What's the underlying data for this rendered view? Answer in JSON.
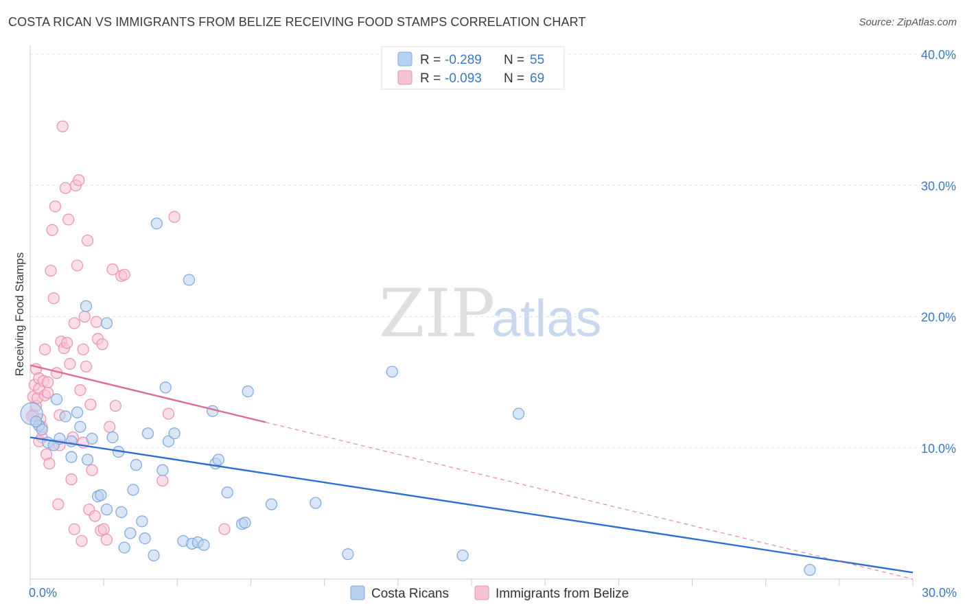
{
  "title": "COSTA RICAN VS IMMIGRANTS FROM BELIZE RECEIVING FOOD STAMPS CORRELATION CHART",
  "source": "Source: ZipAtlas.com",
  "watermark": {
    "zip": "ZIP",
    "atlas": "atlas"
  },
  "colors": {
    "blue": "#7ba7e0",
    "blue_fill": "#b9d1f1",
    "blue_line": "#2e6fd0",
    "pink": "#ee8fb0",
    "pink_fill": "#f7c2d4",
    "pink_line": "#e06a92",
    "grid": "#e3e3e3",
    "tick": "#3b76c4"
  },
  "chart_data": {
    "type": "scatter",
    "title": "COSTA RICAN VS IMMIGRANTS FROM BELIZE RECEIVING FOOD STAMPS CORRELATION CHART",
    "xlabel": "",
    "ylabel": "Receiving Food Stamps",
    "xlim": [
      0,
      30
    ],
    "ylim": [
      0,
      40
    ],
    "x_tick_labels": [
      "0.0%",
      "30.0%"
    ],
    "y_ticks": [
      10,
      20,
      30,
      40
    ],
    "y_tick_labels": [
      "10.0%",
      "20.0%",
      "30.0%",
      "40.0%"
    ],
    "legend": [
      {
        "r_label": "R =",
        "r_value": "-0.289",
        "n_label": "N =",
        "n_value": "55"
      },
      {
        "r_label": "R =",
        "r_value": "-0.093",
        "n_label": "N =",
        "n_value": "69"
      }
    ],
    "series": [
      {
        "name": "Costa Ricans",
        "trend": {
          "x": [
            0,
            30
          ],
          "y": [
            10.8,
            0.5
          ],
          "dashed_from": null
        },
        "points": [
          {
            "x": 0.05,
            "y": 12.6,
            "big": true
          },
          {
            "x": 0.3,
            "y": 11.7
          },
          {
            "x": 0.4,
            "y": 11.4
          },
          {
            "x": 0.6,
            "y": 10.4
          },
          {
            "x": 0.8,
            "y": 10.2
          },
          {
            "x": 0.9,
            "y": 13.7
          },
          {
            "x": 1.0,
            "y": 10.7
          },
          {
            "x": 1.2,
            "y": 12.4
          },
          {
            "x": 1.4,
            "y": 10.5
          },
          {
            "x": 1.4,
            "y": 9.3
          },
          {
            "x": 1.6,
            "y": 12.7
          },
          {
            "x": 1.7,
            "y": 11.6
          },
          {
            "x": 1.9,
            "y": 20.8
          },
          {
            "x": 1.95,
            "y": 9.1
          },
          {
            "x": 2.1,
            "y": 10.7
          },
          {
            "x": 2.3,
            "y": 6.3
          },
          {
            "x": 2.4,
            "y": 6.4
          },
          {
            "x": 2.6,
            "y": 5.3
          },
          {
            "x": 2.6,
            "y": 19.5
          },
          {
            "x": 2.8,
            "y": 10.8
          },
          {
            "x": 3.0,
            "y": 9.7
          },
          {
            "x": 3.1,
            "y": 5.1
          },
          {
            "x": 3.2,
            "y": 2.4
          },
          {
            "x": 3.4,
            "y": 3.5
          },
          {
            "x": 3.5,
            "y": 6.8
          },
          {
            "x": 3.6,
            "y": 8.7
          },
          {
            "x": 3.8,
            "y": 4.4
          },
          {
            "x": 3.9,
            "y": 3.1
          },
          {
            "x": 4.0,
            "y": 11.1
          },
          {
            "x": 4.2,
            "y": 1.8
          },
          {
            "x": 4.3,
            "y": 27.1
          },
          {
            "x": 4.5,
            "y": 8.3
          },
          {
            "x": 4.6,
            "y": 14.6
          },
          {
            "x": 4.7,
            "y": 10.5
          },
          {
            "x": 4.9,
            "y": 11.1
          },
          {
            "x": 5.2,
            "y": 2.9
          },
          {
            "x": 5.4,
            "y": 22.8
          },
          {
            "x": 5.5,
            "y": 2.7
          },
          {
            "x": 5.7,
            "y": 2.8
          },
          {
            "x": 5.9,
            "y": 2.6
          },
          {
            "x": 6.2,
            "y": 12.8
          },
          {
            "x": 6.3,
            "y": 8.8
          },
          {
            "x": 6.4,
            "y": 9.1
          },
          {
            "x": 6.7,
            "y": 6.6
          },
          {
            "x": 7.2,
            "y": 4.2
          },
          {
            "x": 7.3,
            "y": 4.3
          },
          {
            "x": 7.4,
            "y": 14.3
          },
          {
            "x": 8.2,
            "y": 5.7
          },
          {
            "x": 9.7,
            "y": 5.8
          },
          {
            "x": 10.8,
            "y": 1.9
          },
          {
            "x": 12.3,
            "y": 15.8
          },
          {
            "x": 14.7,
            "y": 1.8
          },
          {
            "x": 16.6,
            "y": 12.6
          },
          {
            "x": 26.5,
            "y": 0.7
          },
          {
            "x": 0.2,
            "y": 12.0
          }
        ]
      },
      {
        "name": "Immigrants from Belize",
        "trend": {
          "x": [
            0,
            30
          ],
          "y": [
            16.3,
            0.0
          ],
          "dashed_from": 8.0
        },
        "points": [
          {
            "x": 0.1,
            "y": 12.5
          },
          {
            "x": 0.1,
            "y": 13.9
          },
          {
            "x": 0.15,
            "y": 14.8
          },
          {
            "x": 0.2,
            "y": 16.0
          },
          {
            "x": 0.2,
            "y": 13.2
          },
          {
            "x": 0.25,
            "y": 13.8
          },
          {
            "x": 0.3,
            "y": 15.3
          },
          {
            "x": 0.3,
            "y": 14.5
          },
          {
            "x": 0.35,
            "y": 12.2
          },
          {
            "x": 0.4,
            "y": 11.6
          },
          {
            "x": 0.4,
            "y": 10.8
          },
          {
            "x": 0.45,
            "y": 15.1
          },
          {
            "x": 0.5,
            "y": 17.5
          },
          {
            "x": 0.5,
            "y": 14.0
          },
          {
            "x": 0.55,
            "y": 9.5
          },
          {
            "x": 0.6,
            "y": 15.0
          },
          {
            "x": 0.6,
            "y": 14.2
          },
          {
            "x": 0.65,
            "y": 8.8
          },
          {
            "x": 0.7,
            "y": 23.5
          },
          {
            "x": 0.75,
            "y": 26.6
          },
          {
            "x": 0.8,
            "y": 21.4
          },
          {
            "x": 0.8,
            "y": 10.2
          },
          {
            "x": 0.85,
            "y": 28.4
          },
          {
            "x": 0.9,
            "y": 15.7
          },
          {
            "x": 0.95,
            "y": 5.7
          },
          {
            "x": 1.0,
            "y": 12.5
          },
          {
            "x": 1.05,
            "y": 18.1
          },
          {
            "x": 1.1,
            "y": 34.5
          },
          {
            "x": 1.15,
            "y": 17.6
          },
          {
            "x": 1.2,
            "y": 29.8
          },
          {
            "x": 1.25,
            "y": 18.0
          },
          {
            "x": 1.3,
            "y": 27.4
          },
          {
            "x": 1.35,
            "y": 16.4
          },
          {
            "x": 1.4,
            "y": 7.6
          },
          {
            "x": 1.45,
            "y": 10.8
          },
          {
            "x": 1.5,
            "y": 19.5
          },
          {
            "x": 1.5,
            "y": 3.8
          },
          {
            "x": 1.55,
            "y": 30.0
          },
          {
            "x": 1.6,
            "y": 23.9
          },
          {
            "x": 1.65,
            "y": 30.4
          },
          {
            "x": 1.7,
            "y": 14.4
          },
          {
            "x": 1.75,
            "y": 2.9
          },
          {
            "x": 1.8,
            "y": 17.5
          },
          {
            "x": 1.85,
            "y": 20.0
          },
          {
            "x": 1.9,
            "y": 16.2
          },
          {
            "x": 1.95,
            "y": 25.8
          },
          {
            "x": 2.0,
            "y": 5.3
          },
          {
            "x": 2.05,
            "y": 13.3
          },
          {
            "x": 2.1,
            "y": 8.3
          },
          {
            "x": 2.2,
            "y": 4.8
          },
          {
            "x": 2.25,
            "y": 19.6
          },
          {
            "x": 2.3,
            "y": 18.3
          },
          {
            "x": 2.4,
            "y": 3.7
          },
          {
            "x": 2.45,
            "y": 17.9
          },
          {
            "x": 2.5,
            "y": 3.8
          },
          {
            "x": 2.6,
            "y": 3.0
          },
          {
            "x": 2.7,
            "y": 11.6
          },
          {
            "x": 2.8,
            "y": 23.6
          },
          {
            "x": 2.9,
            "y": 13.2
          },
          {
            "x": 3.1,
            "y": 23.1
          },
          {
            "x": 3.2,
            "y": 23.2
          },
          {
            "x": 4.5,
            "y": 7.5
          },
          {
            "x": 4.7,
            "y": 12.6
          },
          {
            "x": 4.9,
            "y": 27.6
          },
          {
            "x": 6.6,
            "y": 3.8
          },
          {
            "x": 0.05,
            "y": 12.4
          },
          {
            "x": 0.3,
            "y": 10.5
          },
          {
            "x": 1.0,
            "y": 10.2
          },
          {
            "x": 1.8,
            "y": 10.4
          }
        ]
      }
    ],
    "bottom_legend": [
      "Costa Ricans",
      "Immigrants from Belize"
    ]
  }
}
